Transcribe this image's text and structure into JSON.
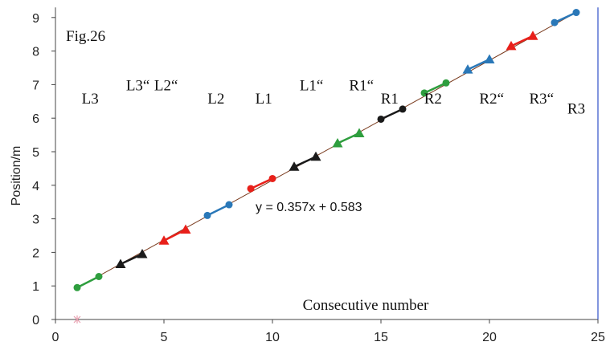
{
  "chart_data": {
    "type": "scatter",
    "title": "",
    "fig_label": "Fig.26",
    "xlabel": "Consecutive number",
    "ylabel": "Position/m",
    "xlim": [
      0,
      25
    ],
    "ylim": [
      0,
      9.3
    ],
    "xticks": [
      0,
      5,
      10,
      15,
      20,
      25
    ],
    "yticks": [
      0,
      1,
      2,
      3,
      4,
      5,
      6,
      7,
      8,
      9
    ],
    "grid": false,
    "legend": "none",
    "trendline": {
      "slope": 0.357,
      "intercept": 0.583,
      "label": "y = 0.357x + 0.583",
      "color": "#7a3b1e"
    },
    "outlier": {
      "x": 1,
      "y": 0,
      "color": "#e8a0b0",
      "marker": "star"
    },
    "segments": [
      {
        "marker": "circle",
        "color": "#2e9e3e",
        "points": [
          [
            1,
            0.95
          ],
          [
            2,
            1.28
          ]
        ]
      },
      {
        "marker": "triangle",
        "color": "#1a1a1a",
        "points": [
          [
            3,
            1.65
          ],
          [
            4,
            1.95
          ]
        ]
      },
      {
        "marker": "triangle",
        "color": "#e8201a",
        "points": [
          [
            5,
            2.35
          ],
          [
            6,
            2.68
          ]
        ]
      },
      {
        "marker": "circle",
        "color": "#2a78b8",
        "points": [
          [
            7,
            3.1
          ],
          [
            8,
            3.42
          ]
        ]
      },
      {
        "marker": "circle",
        "color": "#e8201a",
        "points": [
          [
            9,
            3.9
          ],
          [
            10,
            4.2
          ]
        ]
      },
      {
        "marker": "triangle",
        "color": "#1a1a1a",
        "points": [
          [
            11,
            4.55
          ],
          [
            12,
            4.85
          ]
        ]
      },
      {
        "marker": "triangle",
        "color": "#2e9e3e",
        "points": [
          [
            13,
            5.25
          ],
          [
            14,
            5.55
          ]
        ]
      },
      {
        "marker": "circle",
        "color": "#1a1a1a",
        "points": [
          [
            15,
            5.97
          ],
          [
            16,
            6.27
          ]
        ]
      },
      {
        "marker": "circle",
        "color": "#2e9e3e",
        "points": [
          [
            17,
            6.75
          ],
          [
            18,
            7.05
          ]
        ]
      },
      {
        "marker": "triangle",
        "color": "#2a78b8",
        "points": [
          [
            19,
            7.45
          ],
          [
            20,
            7.75
          ]
        ]
      },
      {
        "marker": "triangle",
        "color": "#e8201a",
        "points": [
          [
            21,
            8.15
          ],
          [
            22,
            8.45
          ]
        ]
      },
      {
        "marker": "circle",
        "color": "#2a78b8",
        "points": [
          [
            23,
            8.85
          ],
          [
            24,
            9.15
          ]
        ]
      }
    ],
    "annotations": [
      {
        "text": "L3",
        "x": 1.6,
        "y": 6.6
      },
      {
        "text": "L3“",
        "x": 3.8,
        "y": 7.0
      },
      {
        "text": "L2“",
        "x": 5.1,
        "y": 7.0
      },
      {
        "text": "L2",
        "x": 7.4,
        "y": 6.6
      },
      {
        "text": "L1",
        "x": 9.6,
        "y": 6.6
      },
      {
        "text": "L1“",
        "x": 11.8,
        "y": 7.0
      },
      {
        "text": "R1“",
        "x": 14.1,
        "y": 7.0
      },
      {
        "text": "R1",
        "x": 15.4,
        "y": 6.6
      },
      {
        "text": "R2",
        "x": 17.4,
        "y": 6.6
      },
      {
        "text": "R2“",
        "x": 20.1,
        "y": 6.6
      },
      {
        "text": "R3“",
        "x": 22.4,
        "y": 6.6
      },
      {
        "text": "R3",
        "x": 24.0,
        "y": 6.3
      }
    ]
  },
  "colors": {
    "axis": "#444444",
    "right_border": "#3050c8",
    "background": "#ffffff"
  }
}
